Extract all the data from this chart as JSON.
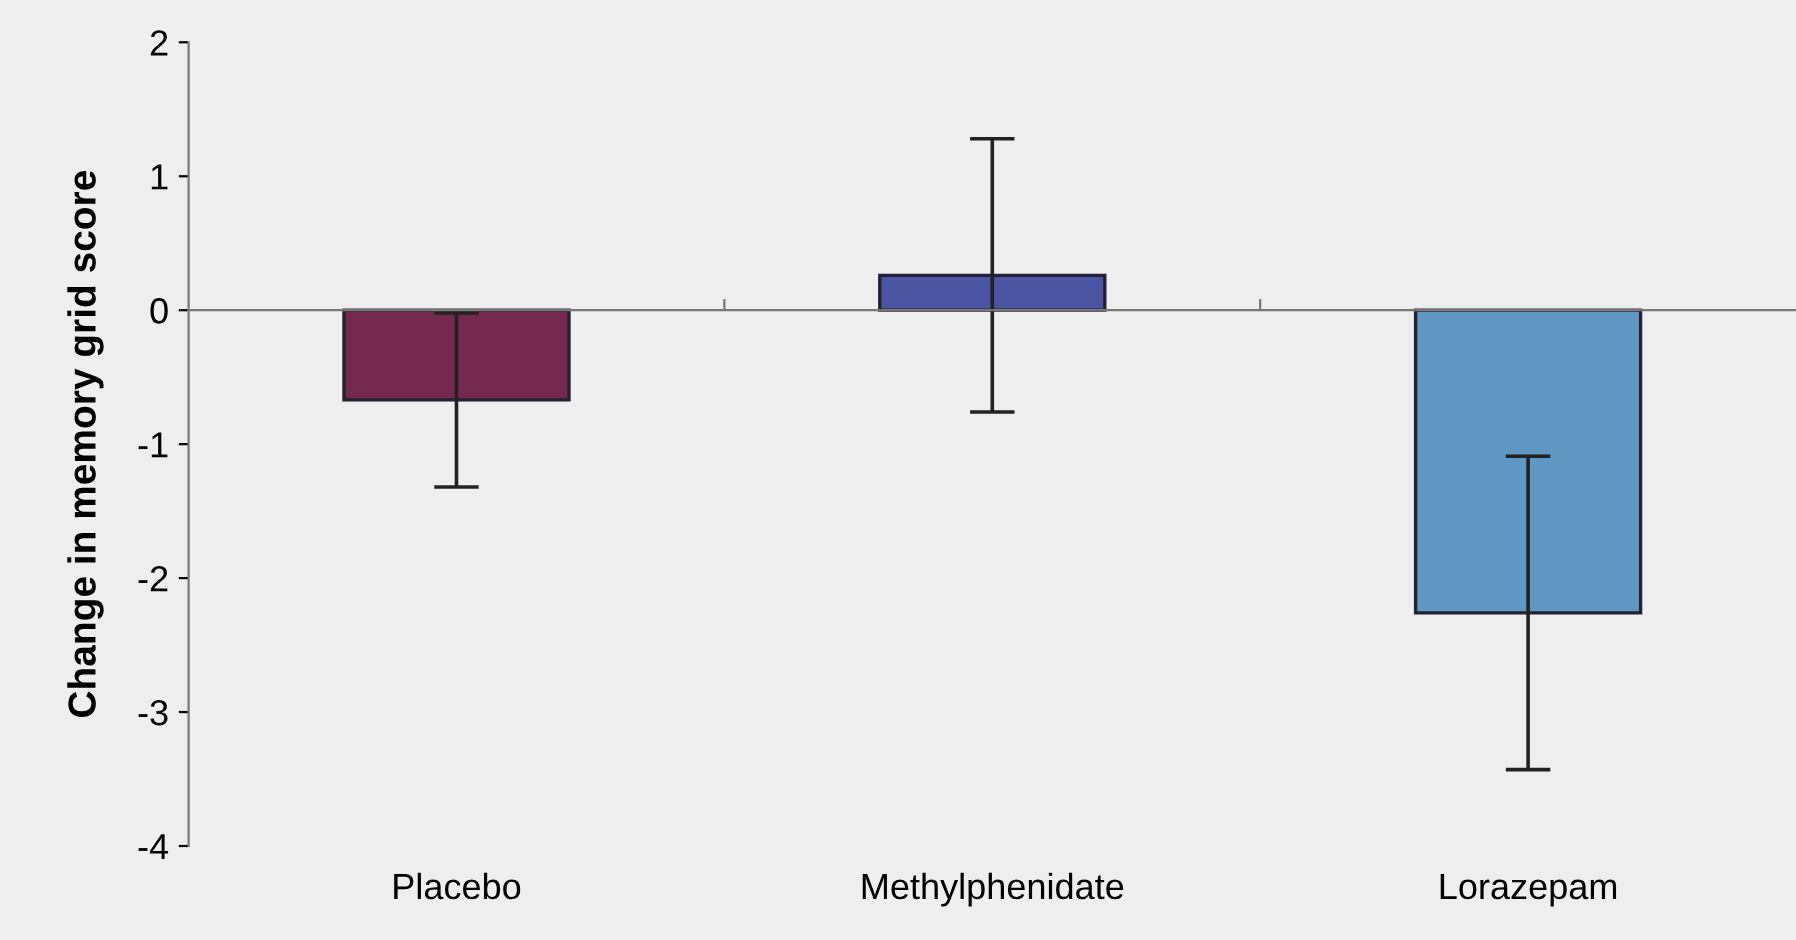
{
  "chart_data": {
    "type": "bar",
    "ylabel": "Change in memory grid score",
    "categories": [
      "Placebo",
      "Methylphenidate",
      "Lorazepam"
    ],
    "values": [
      -0.67,
      0.26,
      -2.26
    ],
    "errors": [
      0.65,
      1.02,
      1.17
    ],
    "colors": [
      "#76294f",
      "#4a55a4",
      "#5e97c2"
    ],
    "ylim": [
      -4,
      2
    ],
    "yticks": [
      -4,
      -3,
      -2,
      -1,
      0,
      1,
      2
    ]
  }
}
